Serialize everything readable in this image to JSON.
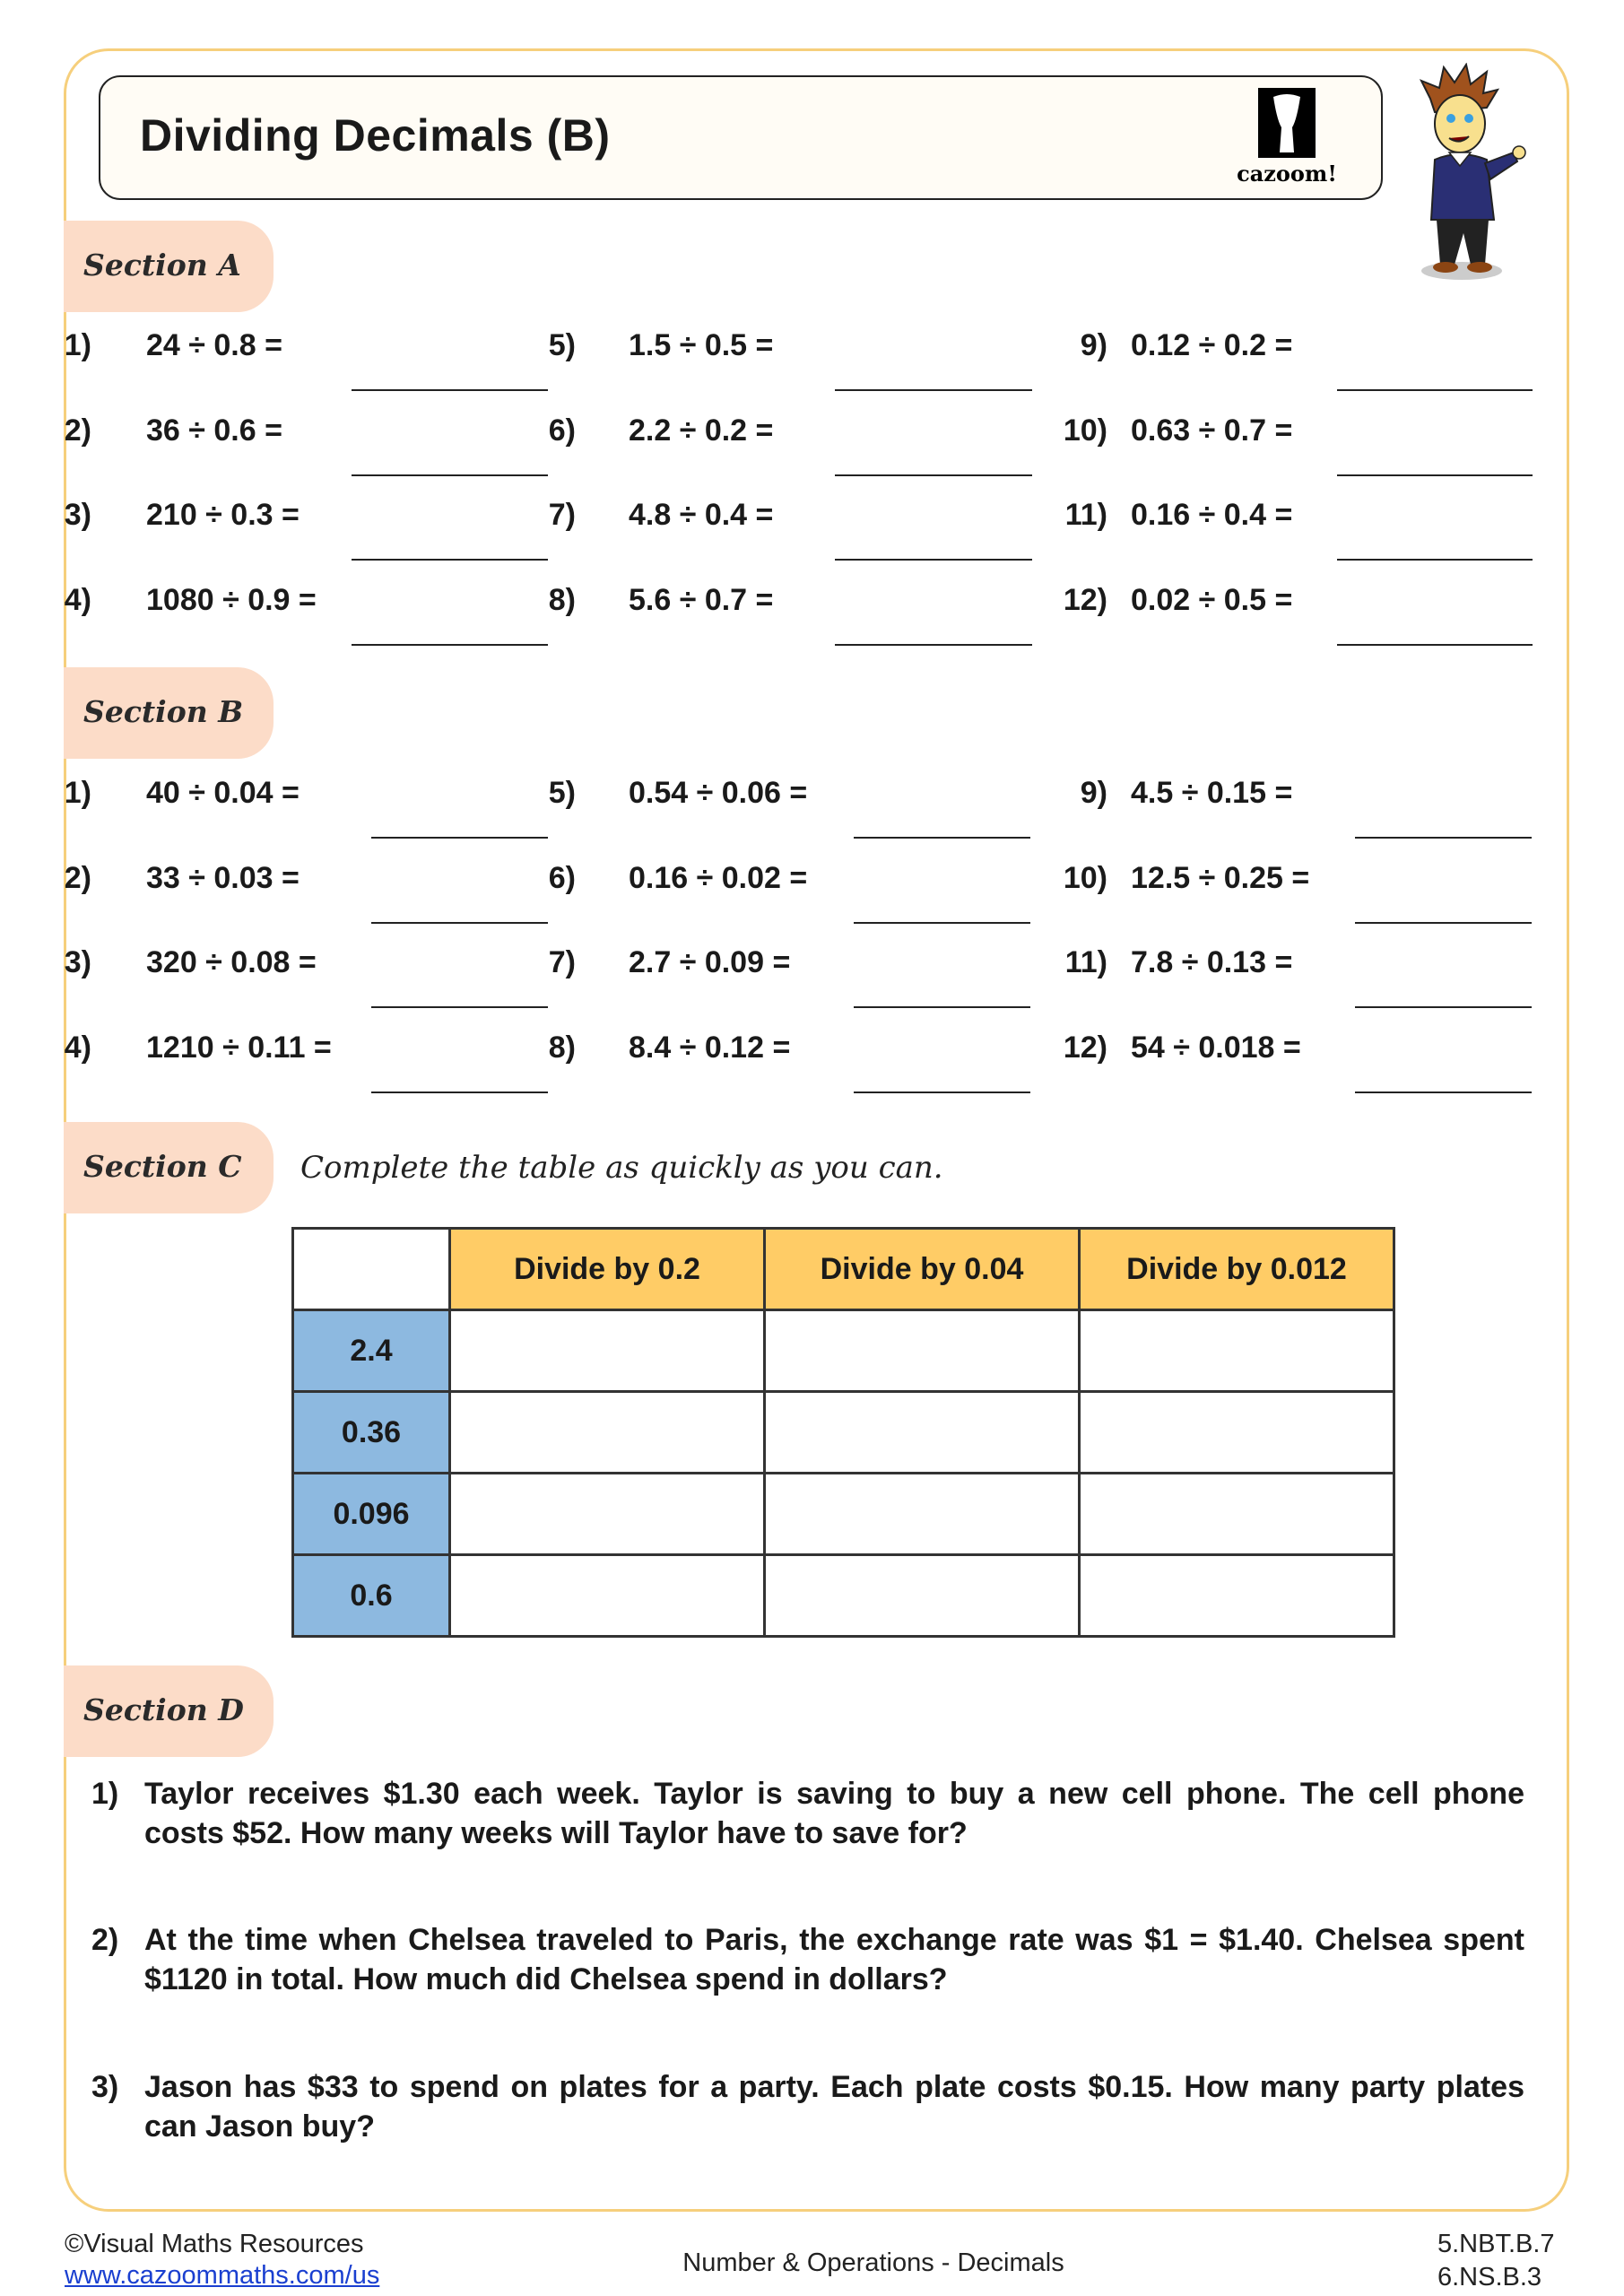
{
  "header": {
    "title": "Dividing Decimals (B)",
    "logo_text": "cazoom!"
  },
  "sections": {
    "a": {
      "label": "Section A",
      "questions": [
        {
          "n": "1)",
          "q": "24 ÷ 0.8 ="
        },
        {
          "n": "2)",
          "q": "36 ÷ 0.6 ="
        },
        {
          "n": "3)",
          "q": "210 ÷ 0.3 ="
        },
        {
          "n": "4)",
          "q": "1080 ÷ 0.9 ="
        },
        {
          "n": "5)",
          "q": "1.5 ÷ 0.5 ="
        },
        {
          "n": "6)",
          "q": "2.2 ÷ 0.2 ="
        },
        {
          "n": "7)",
          "q": "4.8 ÷ 0.4 ="
        },
        {
          "n": "8)",
          "q": "5.6 ÷ 0.7 ="
        },
        {
          "n": "9)",
          "q": "0.12 ÷ 0.2 ="
        },
        {
          "n": "10)",
          "q": "0.63 ÷ 0.7 ="
        },
        {
          "n": "11)",
          "q": "0.16 ÷ 0.4 ="
        },
        {
          "n": "12)",
          "q": "0.02 ÷ 0.5 ="
        }
      ]
    },
    "b": {
      "label": "Section B",
      "questions": [
        {
          "n": "1)",
          "q": "40 ÷ 0.04 ="
        },
        {
          "n": "2)",
          "q": "33 ÷ 0.03 ="
        },
        {
          "n": "3)",
          "q": "320 ÷ 0.08 ="
        },
        {
          "n": "4)",
          "q": "1210 ÷ 0.11 ="
        },
        {
          "n": "5)",
          "q": "0.54 ÷ 0.06 ="
        },
        {
          "n": "6)",
          "q": "0.16 ÷ 0.02 ="
        },
        {
          "n": "7)",
          "q": "2.7 ÷ 0.09 ="
        },
        {
          "n": "8)",
          "q": "8.4 ÷ 0.12 ="
        },
        {
          "n": "9)",
          "q": "4.5 ÷ 0.15 ="
        },
        {
          "n": "10)",
          "q": "12.5 ÷ 0.25 ="
        },
        {
          "n": "11)",
          "q": "7.8 ÷ 0.13 ="
        },
        {
          "n": "12)",
          "q": "54 ÷ 0.018 ="
        }
      ]
    },
    "c": {
      "label": "Section C",
      "instruction": "Complete the table as quickly as you can.",
      "headers": [
        "Divide by 0.2",
        "Divide by 0.04",
        "Divide by 0.012"
      ],
      "rows": [
        "2.4",
        "0.36",
        "0.096",
        "0.6"
      ]
    },
    "d": {
      "label": "Section D",
      "questions": [
        {
          "n": "1)",
          "q": "Taylor receives $1.30 each week. Taylor is saving to buy a new cell phone. The cell phone costs $52. How many weeks will Taylor have to save for?"
        },
        {
          "n": "2)",
          "q": "At the time when Chelsea traveled to Paris, the exchange rate was $1 = $1.40. Chelsea spent $1120 in total. How much did Chelsea spend in dollars?"
        },
        {
          "n": "3)",
          "q": "Jason has $33 to spend on plates for a party. Each plate costs $0.15. How many party plates can Jason buy?"
        }
      ]
    }
  },
  "footer": {
    "copyright": "©Visual Maths Resources",
    "link": "www.cazoommaths.com/us",
    "topic": "Number & Operations - Decimals",
    "standards": [
      "5.NBT.B.7",
      "6.NS.B.3"
    ]
  },
  "colors": {
    "frame": "#F6CF7C",
    "tab": "#FCDCC8",
    "table_header": "#FFCC66",
    "table_row_header": "#8DB9E0"
  }
}
